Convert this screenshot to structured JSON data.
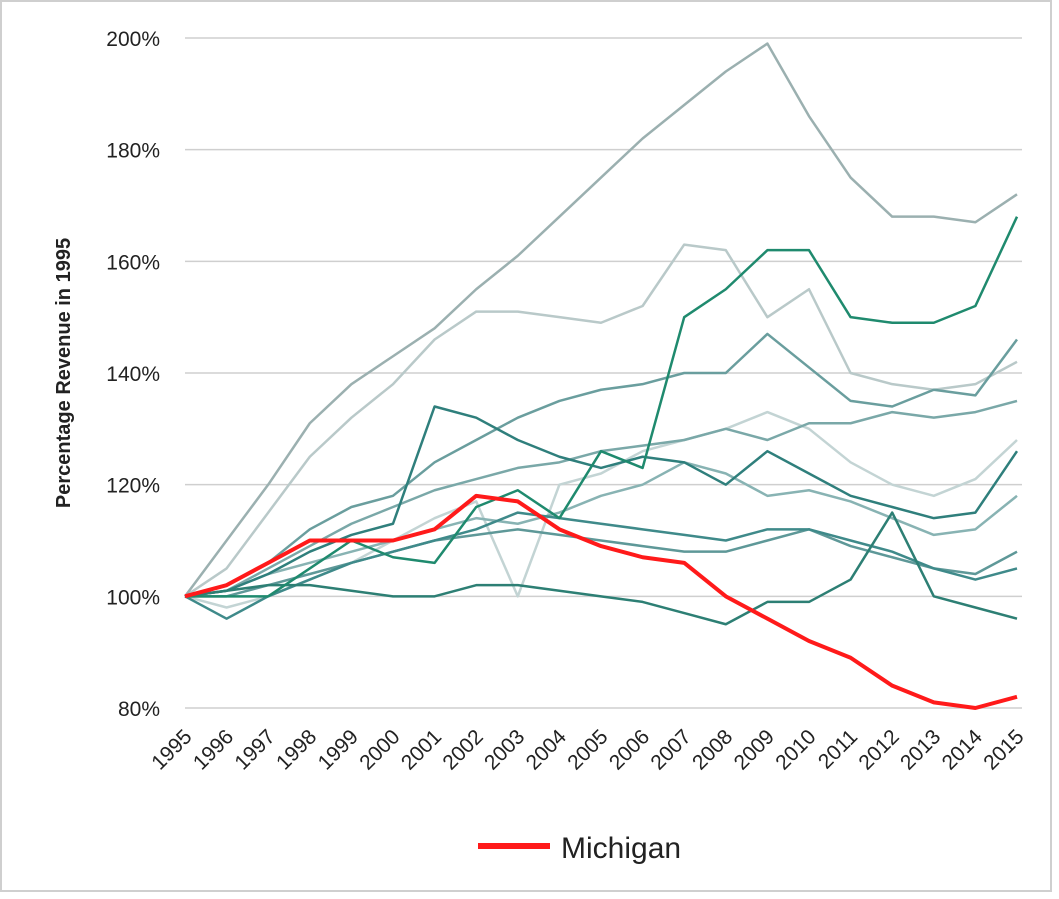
{
  "chart_data": {
    "type": "line",
    "y_label": "Percentage Revenue in 1995",
    "categories": [
      "1995",
      "1996",
      "1997",
      "1998",
      "1999",
      "2000",
      "2001",
      "2002",
      "2003",
      "2004",
      "2005",
      "2006",
      "2007",
      "2008",
      "2009",
      "2010",
      "2011",
      "2012",
      "2013",
      "2014",
      "2015"
    ],
    "ylim": [
      80,
      200
    ],
    "yticks": [
      {
        "value": 80,
        "label": "80%"
      },
      {
        "value": 100,
        "label": "100%"
      },
      {
        "value": 120,
        "label": "120%"
      },
      {
        "value": 140,
        "label": "140%"
      },
      {
        "value": 160,
        "label": "160%"
      },
      {
        "value": 180,
        "label": "180%"
      },
      {
        "value": 200,
        "label": "200%"
      }
    ],
    "grid": true,
    "legend": "bottom",
    "series": [
      {
        "color": "#b9c9c9",
        "values": [
          100,
          105,
          115,
          125,
          132,
          138,
          146,
          151,
          151,
          150,
          149,
          152,
          163,
          162,
          150,
          155,
          140,
          138,
          137,
          138,
          142
        ]
      },
      {
        "color": "#c3d4d4",
        "values": [
          100,
          98,
          100,
          103,
          106,
          110,
          114,
          117,
          100,
          120,
          122,
          126,
          128,
          130,
          133,
          130,
          124,
          120,
          118,
          121,
          128
        ]
      },
      {
        "color": "#9bb0b0",
        "values": [
          100,
          110,
          120,
          131,
          138,
          143,
          148,
          155,
          161,
          168,
          175,
          182,
          188,
          194,
          199,
          186,
          175,
          168,
          168,
          167,
          172
        ]
      },
      {
        "color": "#7aa8a8",
        "values": [
          100,
          101,
          105,
          109,
          113,
          116,
          119,
          121,
          123,
          124,
          126,
          127,
          128,
          130,
          128,
          131,
          131,
          133,
          132,
          133,
          135
        ]
      },
      {
        "color": "#6a9e9e",
        "values": [
          100,
          102,
          106,
          112,
          116,
          118,
          124,
          128,
          132,
          135,
          137,
          138,
          140,
          140,
          147,
          141,
          135,
          134,
          137,
          136,
          146
        ]
      },
      {
        "color": "#88b3b3",
        "values": [
          100,
          101,
          104,
          106,
          108,
          110,
          112,
          114,
          113,
          115,
          118,
          120,
          124,
          122,
          118,
          119,
          117,
          114,
          111,
          112,
          118
        ]
      },
      {
        "color": "#5e9898",
        "values": [
          100,
          100,
          102,
          104,
          106,
          108,
          110,
          111,
          112,
          111,
          110,
          109,
          108,
          108,
          110,
          112,
          109,
          107,
          105,
          104,
          108
        ]
      },
      {
        "color": "#3f8a8a",
        "values": [
          100,
          96,
          100,
          103,
          106,
          108,
          110,
          112,
          115,
          114,
          113,
          112,
          111,
          110,
          112,
          112,
          110,
          108,
          105,
          103,
          105
        ]
      },
      {
        "color": "#2f7f7c",
        "values": [
          100,
          101,
          104,
          108,
          111,
          113,
          134,
          132,
          128,
          125,
          123,
          125,
          124,
          120,
          126,
          122,
          118,
          116,
          114,
          115,
          126
        ]
      },
      {
        "color": "#2d7f74",
        "values": [
          100,
          101,
          102,
          102,
          101,
          100,
          100,
          102,
          102,
          101,
          100,
          99,
          97,
          95,
          99,
          99,
          103,
          115,
          100,
          98,
          96
        ]
      },
      {
        "color": "#1f8a6e",
        "values": [
          100,
          100,
          100,
          105,
          110,
          107,
          106,
          116,
          119,
          114,
          126,
          123,
          150,
          155,
          162,
          162,
          150,
          149,
          149,
          152,
          168
        ]
      },
      {
        "name": "Michigan",
        "color": "#ff1a1a",
        "values": [
          100,
          102,
          106,
          110,
          110,
          110,
          112,
          118,
          117,
          112,
          109,
          107,
          106,
          100,
          96,
          92,
          89,
          84,
          81,
          80,
          82
        ]
      }
    ]
  }
}
